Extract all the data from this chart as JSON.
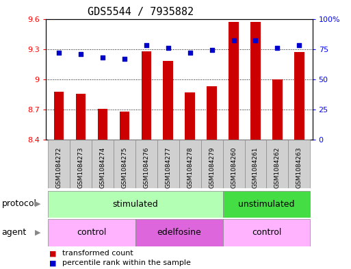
{
  "title": "GDS5544 / 7935882",
  "samples": [
    "GSM1084272",
    "GSM1084273",
    "GSM1084274",
    "GSM1084275",
    "GSM1084276",
    "GSM1084277",
    "GSM1084278",
    "GSM1084279",
    "GSM1084260",
    "GSM1084261",
    "GSM1084262",
    "GSM1084263"
  ],
  "red_values": [
    8.88,
    8.86,
    8.71,
    8.68,
    9.28,
    9.18,
    8.87,
    8.93,
    9.57,
    9.57,
    9.0,
    9.27
  ],
  "blue_values": [
    72,
    71,
    68,
    67,
    78,
    76,
    72,
    74,
    82,
    82,
    76,
    78
  ],
  "ylim_left": [
    8.4,
    9.6
  ],
  "ylim_right": [
    0,
    100
  ],
  "yticks_left": [
    8.4,
    8.7,
    9.0,
    9.3,
    9.6
  ],
  "yticks_right": [
    0,
    25,
    50,
    75,
    100
  ],
  "ytick_labels_left": [
    "8.4",
    "8.7",
    "9",
    "9.3",
    "9.6"
  ],
  "ytick_labels_right": [
    "0",
    "25",
    "50",
    "75",
    "100%"
  ],
  "hlines": [
    8.7,
    9.0,
    9.3
  ],
  "protocol_groups": [
    {
      "label": "stimulated",
      "start": 0,
      "end": 7,
      "color": "#b3ffb3"
    },
    {
      "label": "unstimulated",
      "start": 8,
      "end": 11,
      "color": "#44dd44"
    }
  ],
  "agent_groups": [
    {
      "label": "control",
      "start": 0,
      "end": 3,
      "color": "#ffb3ff"
    },
    {
      "label": "edelfosine",
      "start": 4,
      "end": 7,
      "color": "#dd66dd"
    },
    {
      "label": "control",
      "start": 8,
      "end": 11,
      "color": "#ffb3ff"
    }
  ],
  "bar_color": "#cc0000",
  "dot_color": "#0000cc",
  "bar_width": 0.45,
  "title_fontsize": 11,
  "tick_fontsize": 8,
  "label_fontsize": 9,
  "sample_label_fontsize": 6.5
}
